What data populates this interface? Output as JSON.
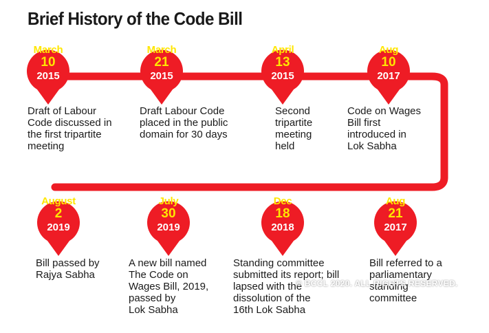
{
  "title": "Brief History of the Code Bill",
  "colors": {
    "track": "#ee1c25",
    "month": "#ffe600",
    "year": "#ffffff"
  },
  "events": [
    {
      "month": "March",
      "day": "10",
      "year": "2015",
      "desc": "Draft of Labour\nCode discussed in\nthe first tripartite\nmeeting"
    },
    {
      "month": "March",
      "day": "21",
      "year": "2015",
      "desc": "Draft Labour Code\nplaced in the public\ndomain for 30 days"
    },
    {
      "month": "April",
      "day": "13",
      "year": "2015",
      "desc": "Second\ntripartite\nmeeting\nheld"
    },
    {
      "month": "Aug",
      "day": "10",
      "year": "2017",
      "desc": "Code on Wages\nBill first\nintroduced in\nLok Sabha"
    },
    {
      "month": "August",
      "day": "2",
      "year": "2019",
      "desc": "Bill passed by\nRajya Sabha"
    },
    {
      "month": "July",
      "day": "30",
      "year": "2019",
      "desc": "A new bill named\nThe Code on\nWages Bill, 2019,\npassed by\nLok Sabha"
    },
    {
      "month": "Dec",
      "day": "18",
      "year": "2018",
      "desc": "Standing committee\nsubmitted its report; bill\nlapsed with the\ndissolution of the\n16th Lok Sabha"
    },
    {
      "month": "Aug",
      "day": "21",
      "year": "2017",
      "desc": "Bill referred to a\nparliamentary\nstanding\ncommittee"
    }
  ],
  "watermark": "© BCCL 2020. ALL RIGHTS RESERVED."
}
